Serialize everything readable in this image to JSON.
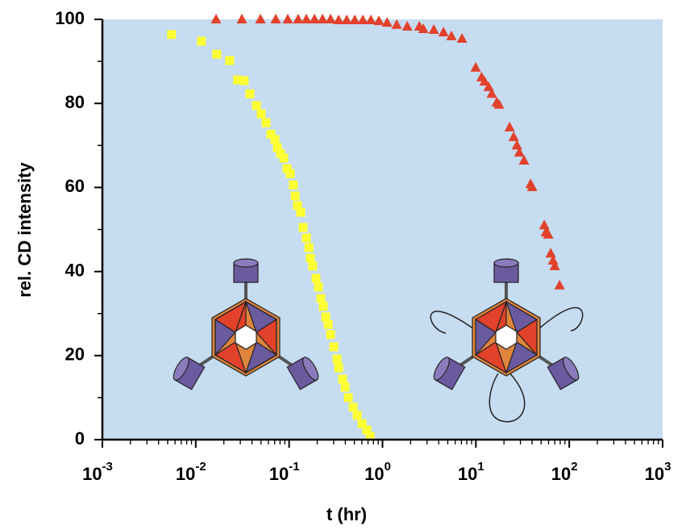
{
  "chart_data": {
    "type": "scatter",
    "x_label": "t (hr)",
    "y_label": "rel. CD intensity",
    "xscale": "log",
    "xlim": [
      0.001,
      1000
    ],
    "ylim": [
      0,
      100
    ],
    "xticks": [
      {
        "value": 0.001,
        "label": "10",
        "exponent": "-3"
      },
      {
        "value": 0.01,
        "label": "10",
        "exponent": "-2"
      },
      {
        "value": 0.1,
        "label": "10",
        "exponent": "-1"
      },
      {
        "value": 1,
        "label": "10",
        "exponent": "0"
      },
      {
        "value": 10,
        "label": "10",
        "exponent": "1"
      },
      {
        "value": 100,
        "label": "10",
        "exponent": "2"
      },
      {
        "value": 1000,
        "label": "10",
        "exponent": "3"
      }
    ],
    "yticks": [
      0,
      20,
      40,
      60,
      80,
      100
    ],
    "background": "#c6dcf1",
    "series": [
      {
        "marker": "square",
        "color": "#ffff33",
        "x": [
          0.0055,
          0.0115,
          0.0168,
          0.0231,
          0.028,
          0.033,
          0.038,
          0.0446,
          0.0502,
          0.0566,
          0.0638,
          0.0705,
          0.0748,
          0.081,
          0.0877,
          0.095,
          0.1028,
          0.111,
          0.116,
          0.123,
          0.133,
          0.141,
          0.153,
          0.163,
          0.169,
          0.179,
          0.194,
          0.206,
          0.219,
          0.232,
          0.247,
          0.262,
          0.278,
          0.301,
          0.326,
          0.339,
          0.374,
          0.397,
          0.43,
          0.485,
          0.536,
          0.604,
          0.68,
          0.736
        ],
        "values": [
          96.4,
          94.8,
          91.7,
          90.2,
          85.6,
          85.4,
          82.3,
          79.5,
          77.5,
          75.4,
          72.7,
          71.4,
          69.5,
          68.1,
          67,
          64.5,
          63.3,
          60.6,
          58,
          55.7,
          54.1,
          50.5,
          48,
          45.7,
          43.2,
          41.3,
          38.4,
          36.3,
          33.6,
          31.7,
          29.2,
          27.4,
          25,
          22.1,
          19.2,
          17.1,
          14.4,
          12.5,
          10,
          7.7,
          5.8,
          3.8,
          2.3,
          0.8
        ]
      },
      {
        "marker": "triangle",
        "color": "#e2412b",
        "x": [
          0.0165,
          0.0312,
          0.0493,
          0.0719,
          0.0968,
          0.125,
          0.153,
          0.187,
          0.228,
          0.278,
          0.339,
          0.414,
          0.505,
          0.616,
          0.751,
          0.916,
          1.12,
          1.42,
          1.84,
          2.48,
          2.74,
          3.54,
          4.5,
          5.48,
          7.1,
          9.95,
          11.5,
          12.4,
          13.7,
          14.8,
          16.7,
          17.7,
          23.0,
          25.4,
          27.5,
          29.2,
          32.8,
          38.5,
          40.1,
          54.0,
          56.2,
          59.6,
          63.3,
          67.1,
          69.9,
          78.8
        ],
        "values": [
          100,
          100,
          100,
          100,
          100,
          100,
          100,
          100,
          100,
          100,
          99.8,
          99.8,
          99.8,
          99.8,
          99.8,
          99.6,
          99.2,
          98.7,
          98.3,
          98.3,
          97.7,
          97.5,
          96.9,
          96,
          95.4,
          88.5,
          86.2,
          85.2,
          83.9,
          82.3,
          80.2,
          79.7,
          74.3,
          72,
          70,
          68.3,
          66.4,
          60.8,
          60.1,
          51,
          49.3,
          48.8,
          44.3,
          42.6,
          41.3,
          36.7
        ]
      }
    ]
  }
}
